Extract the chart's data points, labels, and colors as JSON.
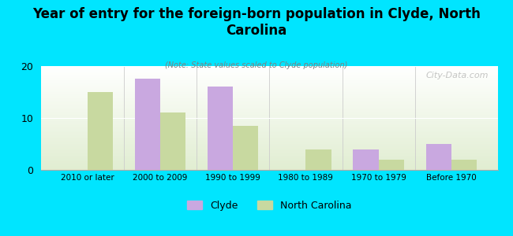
{
  "title": "Year of entry for the foreign-born population in Clyde, North\nCarolina",
  "subtitle": "(Note: State values scaled to Clyde population)",
  "categories": [
    "2010 or later",
    "2000 to 2009",
    "1990 to 1999",
    "1980 to 1989",
    "1970 to 1979",
    "Before 1970"
  ],
  "clyde_values": [
    0,
    17.5,
    16.0,
    0,
    4.0,
    5.0
  ],
  "nc_values": [
    15.0,
    11.0,
    8.5,
    4.0,
    2.0,
    2.0
  ],
  "clyde_color": "#c9a8e0",
  "nc_color": "#c8d9a0",
  "background_color": "#00e5ff",
  "ylim": [
    0,
    20
  ],
  "yticks": [
    0,
    10,
    20
  ],
  "bar_width": 0.35,
  "legend_labels": [
    "Clyde",
    "North Carolina"
  ],
  "watermark": "City-Data.com"
}
